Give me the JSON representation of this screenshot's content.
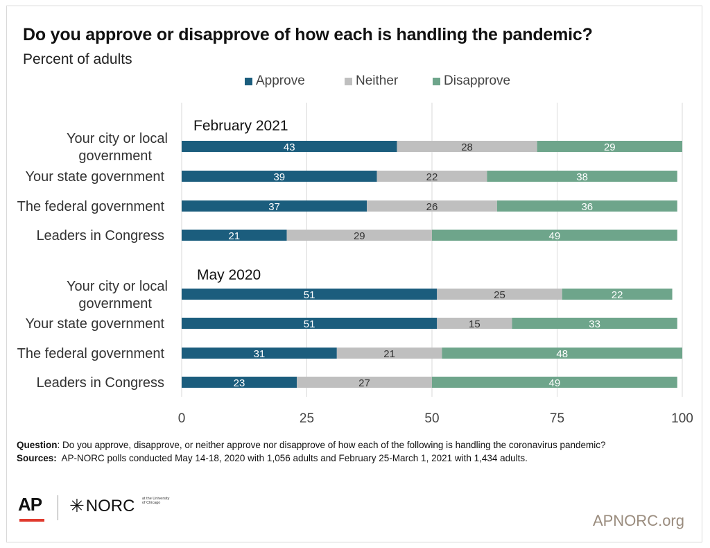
{
  "title": "Do you approve or disapprove of how each is handling the pandemic?",
  "subtitle": "Percent of adults",
  "colors": {
    "approve": "#1b5d7d",
    "neither": "#bfbfbf",
    "disapprove": "#6ea58b",
    "grid": "#d9d9d9",
    "site": "#9a8c7e"
  },
  "chart_data": {
    "type": "bar",
    "orientation": "horizontal-stacked",
    "xlim": [
      0,
      100
    ],
    "xticks": [
      "0",
      "25",
      "50",
      "75",
      "100"
    ],
    "legend_position": "top",
    "grid": true,
    "series_names": [
      "Approve",
      "Neither",
      "Disapprove"
    ],
    "groups": [
      {
        "label": "February 2021",
        "rows": [
          {
            "category": "Your city or local government",
            "values": [
              43,
              28,
              29
            ]
          },
          {
            "category": "Your state government",
            "values": [
              39,
              22,
              38
            ]
          },
          {
            "category": "The federal government",
            "values": [
              37,
              26,
              36
            ]
          },
          {
            "category": "Leaders in Congress",
            "values": [
              21,
              29,
              49
            ]
          }
        ]
      },
      {
        "label": "May 2020",
        "rows": [
          {
            "category": "Your city or local government",
            "values": [
              51,
              25,
              22
            ]
          },
          {
            "category": "Your state government",
            "values": [
              51,
              15,
              33
            ]
          },
          {
            "category": "The federal government",
            "values": [
              31,
              21,
              48
            ]
          },
          {
            "category": "Leaders in Congress",
            "values": [
              23,
              27,
              49
            ]
          }
        ]
      }
    ]
  },
  "footer": {
    "question_label": "Question",
    "question_text": ": Do you approve, disapprove, or neither approve nor disapprove of how each of the following is handling the coronavirus pandemic?",
    "sources_label": "Sources:",
    "sources_text": "  AP-NORC polls conducted May 14-18, 2020 with 1,056 adults and February 25-March 1, 2021 with 1,434 adults."
  },
  "logos": {
    "ap": "AP",
    "norc": "NORC",
    "norc_small": "at the University of Chicago"
  },
  "site": "APNORC.org"
}
